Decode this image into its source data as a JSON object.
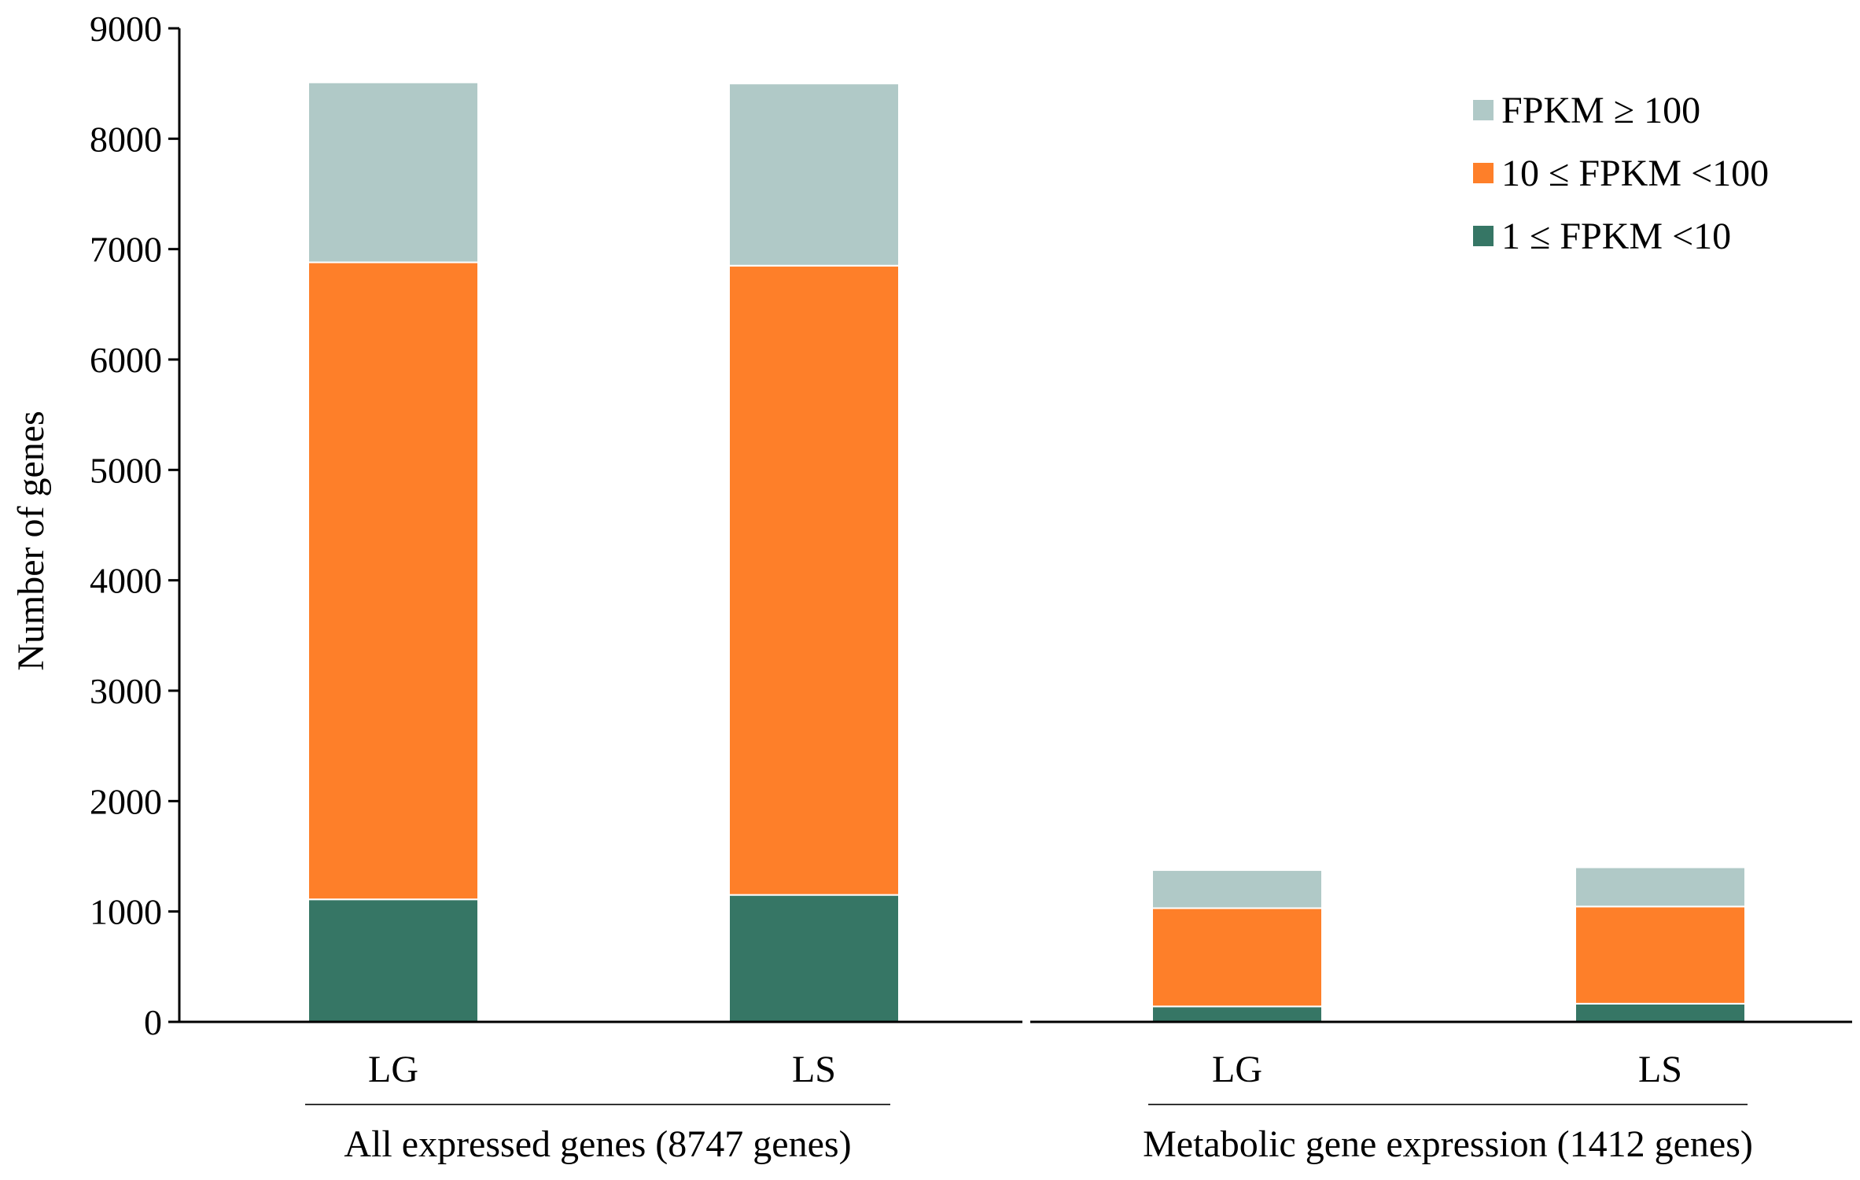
{
  "chart_data": {
    "type": "bar",
    "stacked": true,
    "title": "",
    "xlabel": "",
    "ylabel": "Number of genes",
    "ylim": [
      0,
      9000
    ],
    "yticks": [
      0,
      1000,
      2000,
      3000,
      4000,
      5000,
      6000,
      7000,
      8000,
      9000
    ],
    "categories": [
      "LG",
      "LS",
      "LG",
      "LS"
    ],
    "groups": [
      {
        "label": "All expressed genes (8747 genes)",
        "categories": [
          0,
          1
        ]
      },
      {
        "label": "Metabolic gene expression (1412 genes)",
        "categories": [
          2,
          3
        ]
      }
    ],
    "series": [
      {
        "name": "1 ≤ FPKM <10",
        "color": "#367665",
        "values": [
          1110,
          1150,
          140,
          165
        ]
      },
      {
        "name": "10 ≤ FPKM <100",
        "color": "#fe7f29",
        "values": [
          5770,
          5700,
          890,
          880
        ]
      },
      {
        "name": "FPKM ≥ 100",
        "color": "#b0c9c7",
        "values": [
          1630,
          1650,
          345,
          355
        ]
      }
    ],
    "legend": {
      "position": "top-right",
      "order": [
        2,
        1,
        0
      ]
    },
    "grid": false
  }
}
